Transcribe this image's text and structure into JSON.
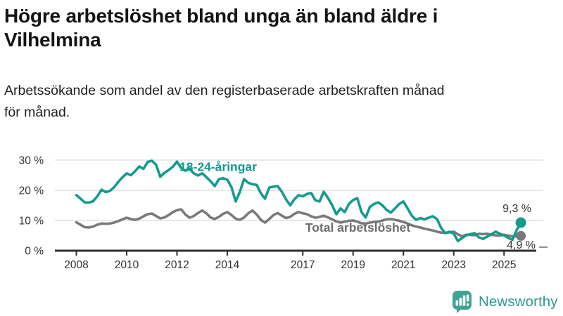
{
  "header": {
    "title_line1": "Högre arbetslöshet bland unga än bland äldre i",
    "title_line2": "Vilhelmina",
    "subtitle_line1": "Arbetssökande som andel av den registerbaserade arbetskraften månad",
    "subtitle_line2": "för månad."
  },
  "footer": {
    "brand": "Newsworthy"
  },
  "colors": {
    "youth_line": "#149b8d",
    "total_line": "#7a7a7a",
    "total_label": "#6e6e6e",
    "axis": "#2f2f2f",
    "gridline": "#dcdcdc",
    "brand_teal": "#3ea393"
  },
  "chart_data": {
    "type": "line",
    "title": "Högre arbetslöshet bland unga än bland äldre i Vilhelmina",
    "subtitle": "Arbetssökande som andel av den registerbaserade arbetskraften månad för månad.",
    "unit": "%",
    "x_start": 2008.0,
    "x_step_years": 0.16667,
    "xlim": [
      2008,
      2025.9
    ],
    "ylim": [
      0,
      32
    ],
    "grid": true,
    "x_ticks": [
      2008,
      2010,
      2012,
      2014,
      2017,
      2019,
      2021,
      2023,
      2025
    ],
    "y_ticks": [
      0,
      10,
      20,
      30
    ],
    "y_tick_suffix": " %",
    "series": [
      {
        "name": "Total arbetslöshet",
        "end_label": "4,9 %",
        "end_value": 4.9,
        "label_pos": {
          "year": 2017.1,
          "value": 6.3
        },
        "values": [
          9.4,
          8.6,
          7.8,
          7.7,
          8.0,
          8.6,
          9.0,
          8.9,
          9.0,
          9.3,
          9.8,
          10.4,
          10.9,
          10.5,
          10.2,
          10.6,
          11.4,
          12.1,
          12.3,
          11.5,
          10.7,
          11.0,
          11.8,
          12.8,
          13.4,
          13.7,
          12.0,
          10.9,
          11.5,
          12.5,
          13.3,
          12.4,
          11.0,
          10.5,
          11.2,
          12.2,
          12.8,
          11.8,
          10.6,
          10.2,
          11.0,
          12.4,
          13.3,
          12.0,
          10.2,
          9.3,
          10.5,
          11.8,
          12.5,
          11.6,
          10.8,
          11.2,
          12.2,
          12.8,
          12.4,
          12.1,
          11.4,
          10.9,
          11.2,
          11.6,
          11.0,
          10.4,
          9.7,
          9.3,
          9.6,
          9.9,
          10.0,
          9.6,
          9.1,
          9.0,
          9.3,
          9.5,
          9.6,
          10.0,
          10.4,
          10.5,
          10.2,
          9.9,
          9.5,
          9.0,
          8.4,
          8.0,
          7.7,
          7.3,
          7.0,
          6.7,
          6.3,
          6.0,
          5.9,
          6.1,
          6.3,
          5.4,
          4.8,
          5.3,
          5.2,
          5.1,
          5.6,
          5.5,
          5.6,
          5.2,
          5.1,
          5.0,
          5.3,
          5.0,
          4.7,
          4.8,
          4.9
        ]
      },
      {
        "name": "18-24-åringar",
        "end_label": "9,3 %",
        "end_value": 9.3,
        "label_pos": {
          "year": 2012.1,
          "value": 26.4
        },
        "values": [
          18.4,
          17.2,
          16.0,
          15.9,
          16.4,
          18.0,
          20.2,
          19.4,
          19.8,
          21.0,
          22.8,
          24.3,
          25.6,
          25.0,
          26.3,
          27.9,
          27.1,
          29.4,
          29.8,
          28.5,
          24.5,
          25.8,
          26.7,
          27.8,
          29.5,
          27.4,
          26.5,
          27.2,
          25.6,
          24.9,
          25.6,
          24.4,
          23.0,
          21.4,
          23.7,
          24.0,
          23.5,
          21.0,
          16.3,
          19.5,
          23.7,
          22.5,
          22.0,
          21.8,
          19.0,
          17.2,
          20.9,
          21.2,
          21.4,
          19.5,
          17.0,
          15.0,
          17.0,
          18.4,
          18.0,
          18.8,
          19.1,
          16.7,
          16.3,
          19.5,
          17.5,
          15.1,
          12.1,
          14.0,
          12.8,
          15.5,
          16.8,
          17.4,
          12.8,
          11.0,
          14.5,
          15.5,
          16.0,
          15.0,
          13.5,
          12.6,
          14.0,
          15.5,
          16.3,
          14.0,
          11.6,
          10.2,
          10.8,
          10.4,
          10.9,
          11.4,
          10.5,
          7.5,
          5.8,
          6.3,
          5.6,
          3.2,
          4.2,
          5.1,
          5.5,
          5.8,
          4.4,
          3.9,
          4.7,
          5.5,
          6.3,
          5.6,
          5.1,
          4.2,
          3.6,
          6.8,
          9.3
        ]
      }
    ]
  }
}
